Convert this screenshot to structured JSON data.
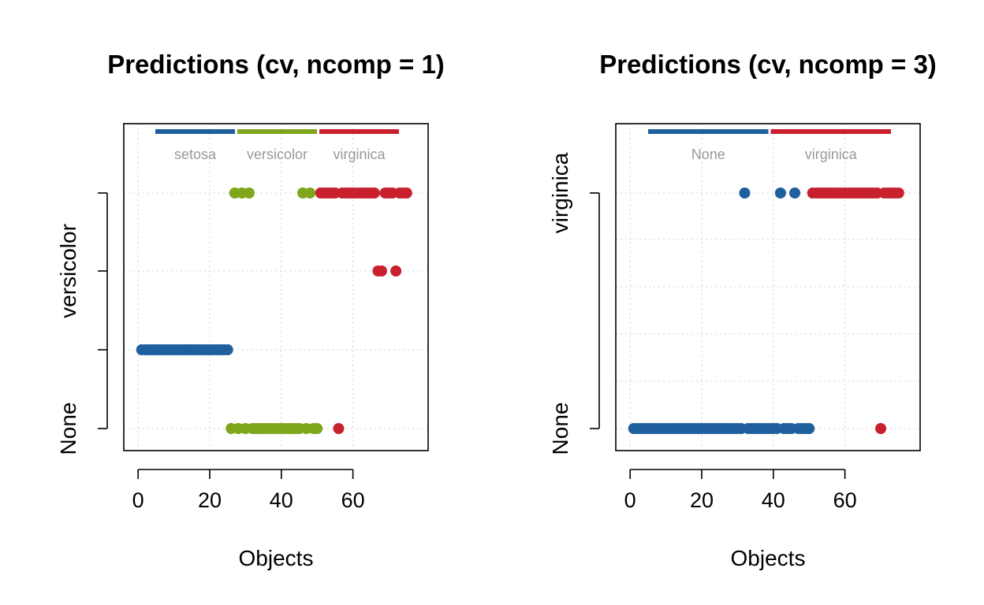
{
  "figure": {
    "point_color_blue": "#1f5f9e",
    "point_color_green": "#7fa61a",
    "point_color_red": "#c8202d",
    "grid_color": "#d0d0d0"
  },
  "chart_data": [
    {
      "type": "scatter",
      "title": "Predictions (cv, ncomp = 1)",
      "xlabel": "Objects",
      "ylabel": "",
      "xlim": [
        -4,
        81
      ],
      "xticks": [
        0,
        20,
        40,
        60
      ],
      "xtick_labels": [
        "0",
        "20",
        "40",
        "60"
      ],
      "y_categories": [
        "None",
        "setosa",
        "versicolor",
        "virginica"
      ],
      "ytick_labels": [
        "None",
        "",
        "versicolor",
        ""
      ],
      "grid": true,
      "legend": [
        {
          "name": "setosa",
          "color": "#1f5f9e"
        },
        {
          "name": "versicolor",
          "color": "#7fa61a"
        },
        {
          "name": "virginica",
          "color": "#c8202d"
        }
      ],
      "series": [
        {
          "name": "setosa",
          "color": "#1f5f9e",
          "points": [
            [
              1,
              "setosa"
            ],
            [
              2,
              "setosa"
            ],
            [
              3,
              "setosa"
            ],
            [
              4,
              "setosa"
            ],
            [
              5,
              "setosa"
            ],
            [
              6,
              "setosa"
            ],
            [
              7,
              "setosa"
            ],
            [
              8,
              "setosa"
            ],
            [
              9,
              "setosa"
            ],
            [
              10,
              "setosa"
            ],
            [
              11,
              "setosa"
            ],
            [
              12,
              "setosa"
            ],
            [
              13,
              "setosa"
            ],
            [
              14,
              "setosa"
            ],
            [
              15,
              "setosa"
            ],
            [
              16,
              "setosa"
            ],
            [
              17,
              "setosa"
            ],
            [
              18,
              "setosa"
            ],
            [
              19,
              "setosa"
            ],
            [
              20,
              "setosa"
            ],
            [
              21,
              "setosa"
            ],
            [
              22,
              "setosa"
            ],
            [
              23,
              "setosa"
            ],
            [
              24,
              "setosa"
            ],
            [
              25,
              "setosa"
            ]
          ]
        },
        {
          "name": "versicolor",
          "color": "#7fa61a",
          "points": [
            [
              26,
              "None"
            ],
            [
              27,
              "virginica"
            ],
            [
              28,
              "None"
            ],
            [
              29,
              "virginica"
            ],
            [
              30,
              "None"
            ],
            [
              31,
              "virginica"
            ],
            [
              32,
              "None"
            ],
            [
              33,
              "None"
            ],
            [
              34,
              "None"
            ],
            [
              35,
              "None"
            ],
            [
              36,
              "None"
            ],
            [
              37,
              "None"
            ],
            [
              38,
              "None"
            ],
            [
              39,
              "None"
            ],
            [
              40,
              "None"
            ],
            [
              41,
              "None"
            ],
            [
              42,
              "None"
            ],
            [
              43,
              "None"
            ],
            [
              44,
              "None"
            ],
            [
              45,
              "None"
            ],
            [
              46,
              "virginica"
            ],
            [
              47,
              "None"
            ],
            [
              48,
              "virginica"
            ],
            [
              49,
              "None"
            ],
            [
              50,
              "None"
            ]
          ]
        },
        {
          "name": "virginica",
          "color": "#c8202d",
          "points": [
            [
              51,
              "virginica"
            ],
            [
              52,
              "virginica"
            ],
            [
              53,
              "virginica"
            ],
            [
              54,
              "virginica"
            ],
            [
              55,
              "virginica"
            ],
            [
              56,
              "None"
            ],
            [
              57,
              "virginica"
            ],
            [
              58,
              "virginica"
            ],
            [
              59,
              "virginica"
            ],
            [
              60,
              "virginica"
            ],
            [
              61,
              "virginica"
            ],
            [
              62,
              "virginica"
            ],
            [
              63,
              "virginica"
            ],
            [
              64,
              "virginica"
            ],
            [
              65,
              "virginica"
            ],
            [
              66,
              "virginica"
            ],
            [
              67,
              "versicolor"
            ],
            [
              68,
              "versicolor"
            ],
            [
              69,
              "virginica"
            ],
            [
              70,
              "virginica"
            ],
            [
              71,
              "virginica"
            ],
            [
              72,
              "versicolor"
            ],
            [
              73,
              "virginica"
            ],
            [
              74,
              "virginica"
            ],
            [
              75,
              "virginica"
            ]
          ]
        }
      ]
    },
    {
      "type": "scatter",
      "title": "Predictions (cv, ncomp = 3)",
      "xlabel": "Objects",
      "ylabel": "",
      "xlim": [
        -4,
        81
      ],
      "xticks": [
        0,
        20,
        40,
        60
      ],
      "xtick_labels": [
        "0",
        "20",
        "40",
        "60"
      ],
      "y_categories": [
        "None",
        "",
        "",
        "",
        "",
        "virginica"
      ],
      "ytick_labels": [
        "None",
        "",
        "",
        "",
        "",
        "virginica"
      ],
      "grid": true,
      "legend": [
        {
          "name": "None",
          "color": "#1f5f9e"
        },
        {
          "name": "virginica",
          "color": "#c8202d"
        }
      ],
      "series": [
        {
          "name": "None",
          "color": "#1f5f9e",
          "points": [
            [
              1,
              "None"
            ],
            [
              2,
              "None"
            ],
            [
              3,
              "None"
            ],
            [
              4,
              "None"
            ],
            [
              5,
              "None"
            ],
            [
              6,
              "None"
            ],
            [
              7,
              "None"
            ],
            [
              8,
              "None"
            ],
            [
              9,
              "None"
            ],
            [
              10,
              "None"
            ],
            [
              11,
              "None"
            ],
            [
              12,
              "None"
            ],
            [
              13,
              "None"
            ],
            [
              14,
              "None"
            ],
            [
              15,
              "None"
            ],
            [
              16,
              "None"
            ],
            [
              17,
              "None"
            ],
            [
              18,
              "None"
            ],
            [
              19,
              "None"
            ],
            [
              20,
              "None"
            ],
            [
              21,
              "None"
            ],
            [
              22,
              "None"
            ],
            [
              23,
              "None"
            ],
            [
              24,
              "None"
            ],
            [
              25,
              "None"
            ],
            [
              26,
              "None"
            ],
            [
              27,
              "None"
            ],
            [
              28,
              "None"
            ],
            [
              29,
              "None"
            ],
            [
              30,
              "None"
            ],
            [
              31,
              "None"
            ],
            [
              32,
              "virginica"
            ],
            [
              33,
              "None"
            ],
            [
              34,
              "None"
            ],
            [
              35,
              "None"
            ],
            [
              36,
              "None"
            ],
            [
              37,
              "None"
            ],
            [
              38,
              "None"
            ],
            [
              39,
              "None"
            ],
            [
              40,
              "None"
            ],
            [
              41,
              "None"
            ],
            [
              42,
              "virginica"
            ],
            [
              43,
              "None"
            ],
            [
              44,
              "None"
            ],
            [
              45,
              "None"
            ],
            [
              46,
              "virginica"
            ],
            [
              47,
              "None"
            ],
            [
              48,
              "None"
            ],
            [
              49,
              "None"
            ],
            [
              50,
              "None"
            ]
          ]
        },
        {
          "name": "virginica",
          "color": "#c8202d",
          "points": [
            [
              51,
              "virginica"
            ],
            [
              52,
              "virginica"
            ],
            [
              53,
              "virginica"
            ],
            [
              54,
              "virginica"
            ],
            [
              55,
              "virginica"
            ],
            [
              56,
              "virginica"
            ],
            [
              57,
              "virginica"
            ],
            [
              58,
              "virginica"
            ],
            [
              59,
              "virginica"
            ],
            [
              60,
              "virginica"
            ],
            [
              61,
              "virginica"
            ],
            [
              62,
              "virginica"
            ],
            [
              63,
              "virginica"
            ],
            [
              64,
              "virginica"
            ],
            [
              65,
              "virginica"
            ],
            [
              66,
              "virginica"
            ],
            [
              67,
              "virginica"
            ],
            [
              68,
              "virginica"
            ],
            [
              69,
              "virginica"
            ],
            [
              70,
              "None"
            ],
            [
              71,
              "virginica"
            ],
            [
              72,
              "virginica"
            ],
            [
              73,
              "virginica"
            ],
            [
              74,
              "virginica"
            ],
            [
              75,
              "virginica"
            ]
          ]
        }
      ]
    }
  ]
}
